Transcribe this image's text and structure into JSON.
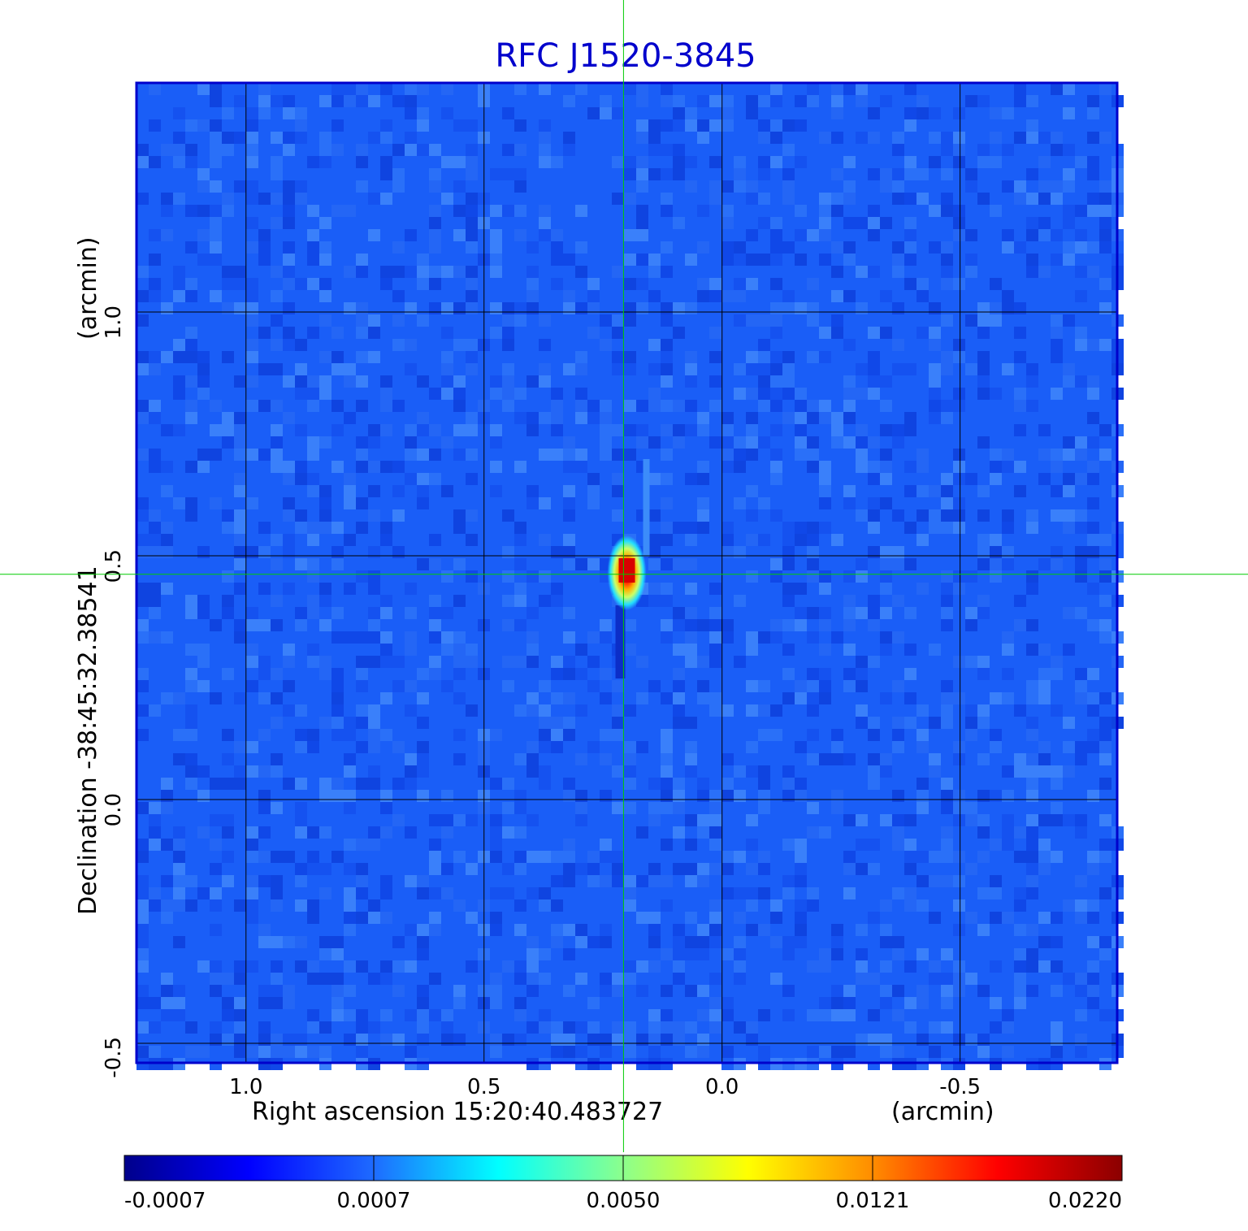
{
  "chart_data": {
    "type": "heatmap",
    "title": "RFC J1520-3845",
    "xlabel": "Right ascension  15:20:40.483727",
    "xunit": "(arcmin)",
    "ylabel": "Declination  -38:45:32.38541",
    "yunit": "(arcmin)",
    "x_ticks": [
      1.0,
      0.5,
      0.0,
      -0.5
    ],
    "x_tick_labels": [
      "1.0",
      "0.5",
      "0.0",
      "-0.5"
    ],
    "y_ticks": [
      1.0,
      0.5,
      0.0,
      -0.5
    ],
    "y_tick_labels": [
      "1.0",
      "0.5",
      "0.0",
      "-0.5"
    ],
    "xlim": [
      1.23,
      -0.83
    ],
    "ylim": [
      -0.54,
      1.47
    ],
    "grid": true,
    "crosshair": {
      "x": 0.207,
      "y": 0.462
    },
    "source": {
      "x": 0.2,
      "y": 0.465,
      "peak": 0.022
    },
    "colorbar": {
      "position": "bottom",
      "tick_labels": [
        "-0.0007",
        "0.0007",
        "0.0050",
        "0.0121",
        "0.0220"
      ],
      "colormap": [
        "#00008b",
        "#0000ff",
        "#1e6bff",
        "#00ffff",
        "#8cff8c",
        "#ffff00",
        "#ff8c00",
        "#ff0000",
        "#8b0000"
      ]
    },
    "colors": {
      "title": "#0000cc",
      "frame": "#0000cc",
      "grid": "#000000",
      "crosshair": "#00cc00",
      "background_map": "#1a5ef7"
    }
  }
}
